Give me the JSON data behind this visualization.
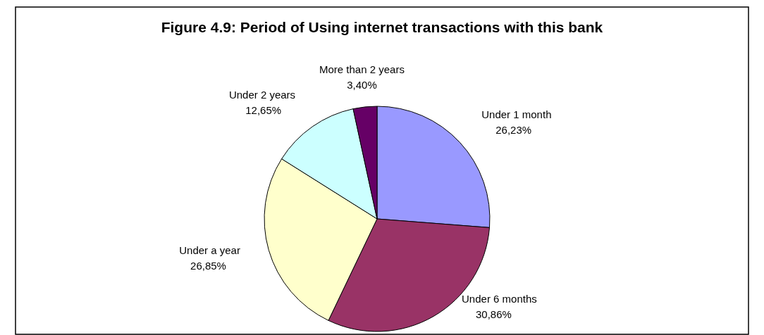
{
  "chart_data": {
    "type": "pie",
    "title": "Figure 4.9: Period of Using internet transactions with this bank",
    "categories": [
      "Under 1 month",
      "Under 6 months",
      "Under a year",
      "Under 2 years",
      "More than 2 years"
    ],
    "values": [
      26.23,
      30.86,
      26.85,
      12.65,
      3.4
    ],
    "colors": [
      "#9999ff",
      "#993366",
      "#ffffcc",
      "#ccffff",
      "#660066"
    ],
    "value_labels": [
      "26,23%",
      "30,86%",
      "26,85%",
      "12,65%",
      "3,40%"
    ],
    "legend": false
  }
}
